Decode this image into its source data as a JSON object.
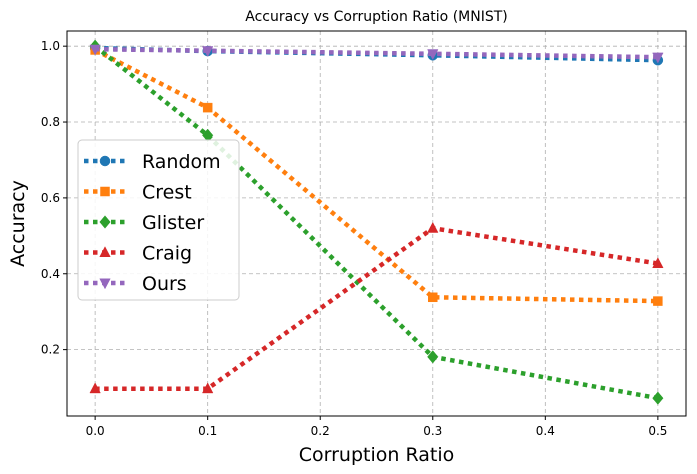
{
  "chart_data": {
    "type": "line",
    "title": "Accuracy vs Corruption Ratio (MNIST)",
    "xlabel": "Corruption Ratio",
    "ylabel": "Accuracy",
    "x": [
      0.0,
      0.1,
      0.3,
      0.5
    ],
    "xlim": [
      -0.025,
      0.525
    ],
    "ylim": [
      0.025,
      1.04
    ],
    "xticks": [
      0.0,
      0.1,
      0.2,
      0.3,
      0.4,
      0.5
    ],
    "xtick_labels": [
      "0.0",
      "0.1",
      "0.2",
      "0.3",
      "0.4",
      "0.5"
    ],
    "yticks": [
      0.2,
      0.4,
      0.6,
      0.8,
      1.0
    ],
    "ytick_labels": [
      "0.2",
      "0.4",
      "0.6",
      "0.8",
      "1.0"
    ],
    "grid": true,
    "legend_position": "center-left",
    "series": [
      {
        "name": "Random",
        "color": "#1f77b4",
        "marker": "circle",
        "values": [
          0.995,
          0.987,
          0.976,
          0.963
        ]
      },
      {
        "name": "Crest",
        "color": "#ff7f0e",
        "marker": "square",
        "values": [
          0.99,
          0.838,
          0.338,
          0.328
        ]
      },
      {
        "name": "Glister",
        "color": "#2ca02c",
        "marker": "diamond",
        "values": [
          1.0,
          0.765,
          0.181,
          0.072
        ]
      },
      {
        "name": "Craig",
        "color": "#d62728",
        "marker": "triangle-up",
        "values": [
          0.097,
          0.097,
          0.52,
          0.427
        ]
      },
      {
        "name": "Ours",
        "color": "#9467bd",
        "marker": "triangle-down",
        "values": [
          0.992,
          0.988,
          0.98,
          0.971
        ]
      }
    ]
  }
}
